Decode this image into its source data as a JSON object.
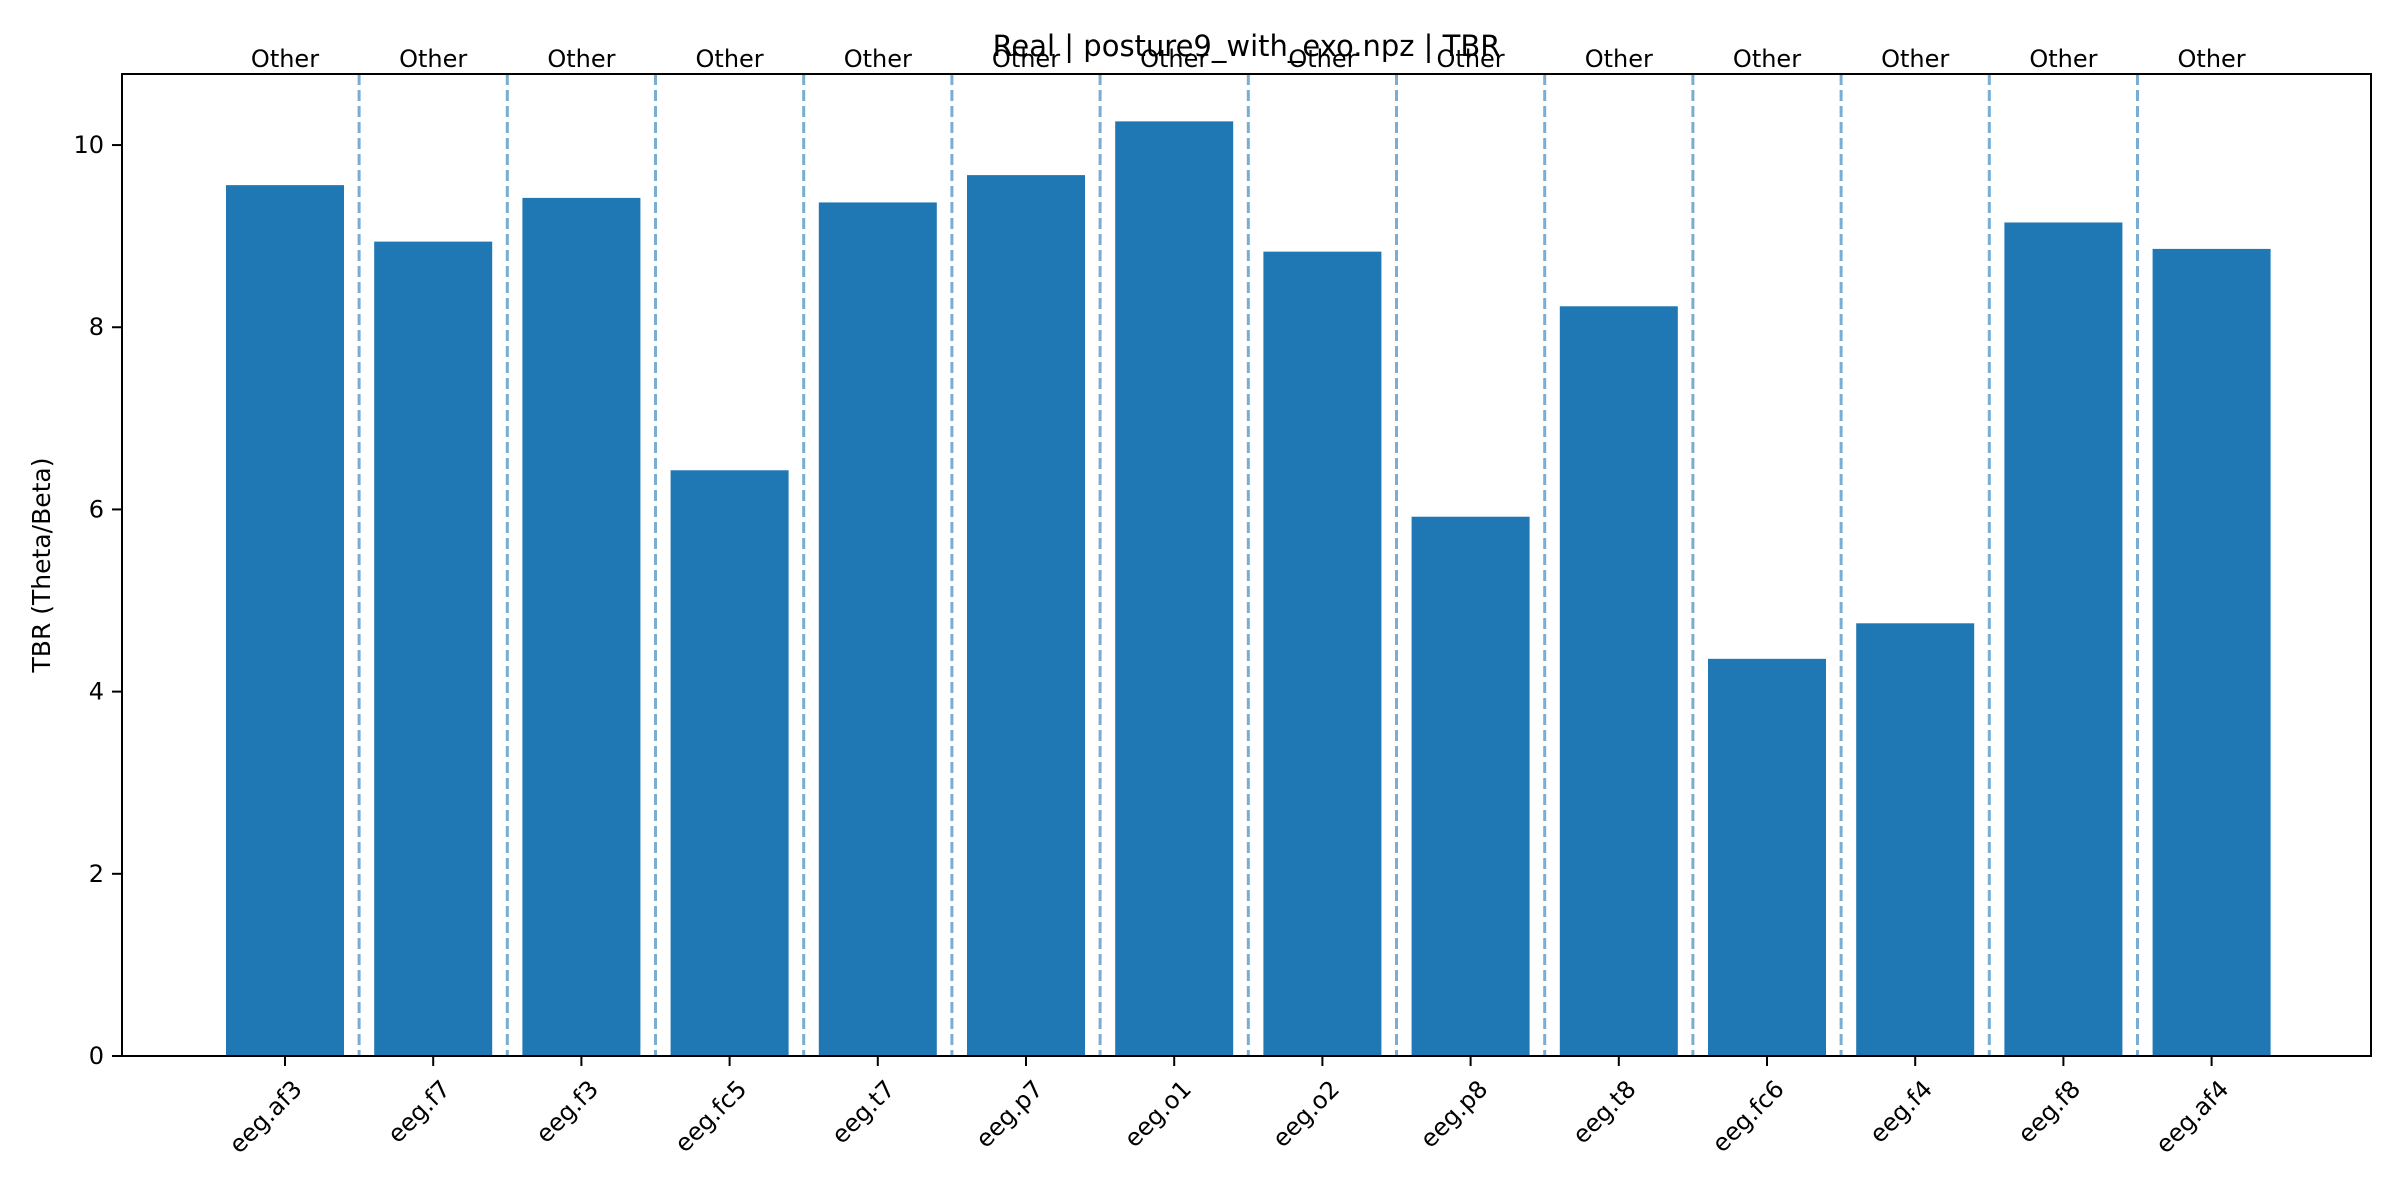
{
  "chart_data": {
    "type": "bar",
    "title": "Real | posture9_with_exo.npz | TBR",
    "xlabel": "",
    "ylabel": "TBR (Theta/Beta)",
    "categories": [
      "eeg.af3",
      "eeg.f7",
      "eeg.f3",
      "eeg.fc5",
      "eeg.t7",
      "eeg.p7",
      "eeg.o1",
      "eeg.o2",
      "eeg.p8",
      "eeg.t8",
      "eeg.fc6",
      "eeg.f4",
      "eeg.f8",
      "eeg.af4"
    ],
    "values": [
      9.56,
      8.94,
      9.42,
      6.43,
      9.37,
      9.67,
      10.26,
      8.83,
      5.92,
      8.23,
      4.36,
      4.75,
      9.15,
      8.86
    ],
    "group_labels": [
      "Other",
      "Other",
      "Other",
      "Other",
      "Other",
      "Other",
      "Other",
      "Other",
      "Other",
      "Other",
      "Other",
      "Other",
      "Other",
      "Other"
    ],
    "ylim": [
      0,
      10.78
    ],
    "yticks": [
      0,
      2,
      4,
      6,
      8,
      10
    ],
    "bar_color": "#1f77b4",
    "separator_color": "#1f77b4",
    "separator_style": "dashed",
    "grid": false,
    "legend": false
  }
}
